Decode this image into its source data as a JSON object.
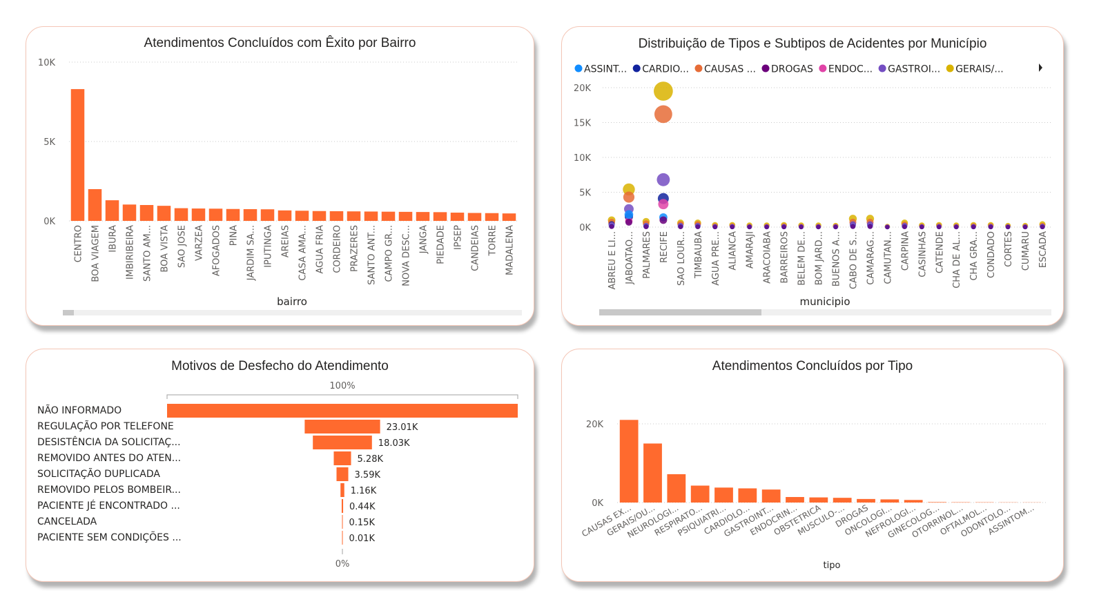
{
  "colors": {
    "bar": "#FF6A2E",
    "grid": "#c8c8c8",
    "axis_text": "#605e5c",
    "card_border": "#f4c6b6",
    "scrollbar_track": "#f0f0f0",
    "scrollbar_thumb": "#c8c8c8"
  },
  "panels": {
    "bairro": {
      "title": "Atendimentos Concluídos com Êxito por Bairro",
      "xlabel": "bairro",
      "yticks": [
        "10K",
        "5K",
        "0K"
      ]
    },
    "municipio": {
      "title": "Distribuição de Tipos e Subtipos de Acidentes por Município",
      "xlabel": "municipio",
      "yticks": [
        "20K",
        "15K",
        "10K",
        "5K",
        "0K"
      ],
      "legend": [
        {
          "label": "ASSINT...",
          "color": "#118DFF"
        },
        {
          "label": "CARDIO...",
          "color": "#12239E"
        },
        {
          "label": "CAUSAS ...",
          "color": "#E66C37"
        },
        {
          "label": "DROGAS",
          "color": "#6B007B"
        },
        {
          "label": "ENDOC...",
          "color": "#E044A7"
        },
        {
          "label": "GASTROI...",
          "color": "#744EC2"
        },
        {
          "label": "GERAIS/...",
          "color": "#D9B300"
        }
      ]
    },
    "desfecho": {
      "title": "Motivos de Desfecho do Atendimento",
      "top_label": "100%",
      "bottom_label": "0%"
    },
    "tipo": {
      "title": "Atendimentos Concluídos por Tipo",
      "xlabel": "tipo",
      "yticks": [
        "20K",
        "0K"
      ]
    }
  },
  "chart_data": [
    {
      "type": "bar",
      "title": "Atendimentos Concluídos com Êxito por Bairro",
      "xlabel": "bairro",
      "ylabel": "",
      "ylim": [
        0,
        10000
      ],
      "categories": [
        "CENTRO",
        "BOA VIAGEM",
        "IBURA",
        "IMBIRIBEIRA",
        "SANTO AM...",
        "BOA VISTA",
        "SAO JOSE",
        "VARZEA",
        "AFOGADOS",
        "PINA",
        "JARDIM SA...",
        "IPUTINGA",
        "AREIAS",
        "CASA AMA...",
        "AGUA FRIA",
        "CORDEIRO",
        "PRAZERES",
        "SANTO ANT...",
        "CAMPO GR...",
        "NOVA DESC...",
        "JANGA",
        "PIEDADE",
        "IPSEP",
        "CANDEIAS",
        "TORRE",
        "MADALENA"
      ],
      "values": [
        8300,
        2000,
        1300,
        1030,
        1000,
        950,
        800,
        780,
        770,
        750,
        740,
        730,
        660,
        640,
        620,
        610,
        600,
        590,
        580,
        570,
        560,
        550,
        520,
        500,
        490,
        470
      ]
    },
    {
      "type": "scatter",
      "title": "Distribuição de Tipos e Subtipos de Acidentes por Município",
      "xlabel": "municipio",
      "ylabel": "",
      "ylim": [
        0,
        20000
      ],
      "categories": [
        "ABREU E LI...",
        "JABOATAO...",
        "PALMARES",
        "RECIFE",
        "SAO LOUR...",
        "TIMBAUBA",
        "AGUA PRE...",
        "ALIANCA",
        "AMARAJI",
        "ARACOIABA",
        "BARREIROS",
        "BELEM DE...",
        "BOM JARD...",
        "BUENOS A...",
        "CABO DE S...",
        "CAMARAG...",
        "CAMUTAN...",
        "CARPINA",
        "CASINHAS",
        "CATENDE",
        "CHA DE AL...",
        "CHA GRA...",
        "CONDADO",
        "CORTES",
        "CUMARU",
        "ESCADA"
      ],
      "series": [
        {
          "name": "GERAIS/...",
          "values": [
            1000,
            5400,
            800,
            19500,
            600,
            600,
            300,
            300,
            250,
            250,
            300,
            250,
            250,
            200,
            1200,
            1200,
            100,
            600,
            250,
            300,
            250,
            300,
            300,
            200,
            200,
            400
          ]
        },
        {
          "name": "CAUSAS ...",
          "values": [
            700,
            4300,
            500,
            16200,
            400,
            400,
            150,
            150,
            100,
            100,
            150,
            100,
            100,
            100,
            700,
            700,
            50,
            350,
            100,
            150,
            100,
            150,
            150,
            80,
            80,
            200
          ]
        },
        {
          "name": "CARDIO...",
          "values": [
            400,
            1500,
            150,
            4100,
            150,
            150,
            50,
            50,
            40,
            40,
            50,
            40,
            40,
            40,
            300,
            300,
            20,
            150,
            40,
            50,
            40,
            50,
            50,
            30,
            30,
            80
          ]
        },
        {
          "name": "GASTROI...",
          "values": [
            300,
            2600,
            200,
            6800,
            200,
            200,
            80,
            80,
            60,
            60,
            80,
            60,
            60,
            60,
            400,
            400,
            30,
            200,
            60,
            80,
            60,
            80,
            80,
            40,
            40,
            100
          ]
        },
        {
          "name": "ENDOC...",
          "values": [
            200,
            900,
            100,
            3300,
            100,
            100,
            40,
            40,
            30,
            30,
            40,
            30,
            30,
            30,
            200,
            200,
            15,
            100,
            30,
            40,
            30,
            40,
            40,
            20,
            20,
            50
          ]
        },
        {
          "name": "ASSINT...",
          "values": [
            150,
            1800,
            100,
            1400,
            80,
            80,
            30,
            30,
            20,
            20,
            30,
            20,
            20,
            20,
            150,
            150,
            10,
            80,
            20,
            30,
            20,
            30,
            30,
            15,
            15,
            40
          ]
        },
        {
          "name": "DROGAS",
          "values": [
            100,
            700,
            60,
            1000,
            50,
            50,
            20,
            20,
            15,
            15,
            20,
            15,
            15,
            15,
            100,
            100,
            5,
            50,
            15,
            20,
            15,
            20,
            20,
            10,
            10,
            25
          ]
        }
      ]
    },
    {
      "type": "bar",
      "orientation": "funnel",
      "title": "Motivos de Desfecho do Atendimento",
      "categories": [
        "NÃO INFORMADO",
        "REGULAÇÃO POR TELEFONE",
        "DESISTÊNCIA DA SOLICITAÇ...",
        "REMOVIDO ANTES DO ATEN...",
        "SOLICITAÇÃO DUPLICADA",
        "REMOVIDO PELOS BOMBEIR...",
        "PACIENTE JÉ ENCONTRADO ...",
        "CANCELADA",
        "PACIENTE SEM CONDIÇÕES ..."
      ],
      "values": [
        107000,
        23010,
        18030,
        5280,
        3590,
        1160,
        440,
        150,
        10
      ],
      "data_labels": [
        "",
        "23.01K",
        "18.03K",
        "5.28K",
        "3.59K",
        "1.16K",
        "0.44K",
        "0.15K",
        "0.01K"
      ]
    },
    {
      "type": "bar",
      "title": "Atendimentos Concluídos por Tipo",
      "xlabel": "tipo",
      "ylabel": "",
      "ylim": [
        0,
        25000
      ],
      "categories": [
        "CAUSAS EX...",
        "GERAIS/OU...",
        "NEUROLOGI...",
        "RESPIRATO...",
        "PSIQUIATRI...",
        "CARDIOLO...",
        "GASTROINT...",
        "ENDOCRIN...",
        "OBSTETRICA",
        "MUSCULO-...",
        "DROGAS",
        "ONCOLOGI...",
        "NEFROLOGI...",
        "GINECOLOG...",
        "OTORRINOL...",
        "OFTALMOL...",
        "ODONTOLO...",
        "ASSINTOM..."
      ],
      "values": [
        21000,
        15000,
        7200,
        4300,
        3800,
        3600,
        3300,
        1400,
        1300,
        1200,
        900,
        800,
        650,
        120,
        80,
        70,
        50,
        40
      ]
    }
  ]
}
